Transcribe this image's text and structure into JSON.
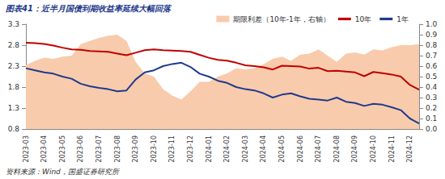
{
  "chart_data": {
    "type": "line",
    "title": "图表41：近半月国债到期收益率延续大幅回落",
    "source": "资料来源：Wind，国盛证券研究所",
    "categories": [
      "2023-03",
      null,
      "2023-04",
      null,
      "2023-05",
      null,
      "2023-06",
      null,
      "2023-07",
      null,
      "2023-08",
      null,
      "2023-09",
      null,
      "2023-10",
      null,
      "2023-11",
      null,
      "2023-12",
      null,
      "2024-01",
      null,
      "2024-02",
      null,
      "2024-03",
      null,
      "2024-04",
      null,
      "2024-05",
      null,
      "2024-06",
      null,
      "2024-07",
      null,
      "2024-08",
      null,
      "2024-09",
      null,
      "2024-10",
      null,
      "2024-11",
      null,
      "2024-12",
      null
    ],
    "series": [
      {
        "name": "期限利差（10年-1年，右轴）",
        "type": "area",
        "axis": "y2",
        "color": "#F8CBAD",
        "values": [
          0.61,
          0.65,
          0.68,
          0.67,
          0.69,
          0.7,
          0.81,
          0.84,
          0.87,
          0.89,
          0.9,
          0.84,
          0.64,
          0.53,
          0.5,
          0.38,
          0.32,
          0.28,
          0.36,
          0.45,
          0.45,
          0.5,
          0.53,
          0.58,
          0.57,
          0.58,
          0.62,
          0.67,
          0.69,
          0.65,
          0.71,
          0.72,
          0.76,
          0.7,
          0.64,
          0.72,
          0.73,
          0.71,
          0.76,
          0.75,
          0.78,
          0.8,
          0.8,
          0.81
        ]
      },
      {
        "name": "10年",
        "type": "line",
        "color": "#C00000",
        "values": [
          2.86,
          2.85,
          2.83,
          2.79,
          2.74,
          2.7,
          2.69,
          2.66,
          2.65,
          2.64,
          2.6,
          2.56,
          2.62,
          2.68,
          2.7,
          2.68,
          2.67,
          2.66,
          2.64,
          2.57,
          2.5,
          2.45,
          2.43,
          2.38,
          2.32,
          2.3,
          2.27,
          2.22,
          2.31,
          2.3,
          2.29,
          2.24,
          2.26,
          2.18,
          2.19,
          2.17,
          2.15,
          2.06,
          2.16,
          2.13,
          2.1,
          2.05,
          1.85,
          1.74
        ]
      },
      {
        "name": "1年",
        "type": "line",
        "color": "#1F3A8C",
        "values": [
          2.25,
          2.2,
          2.15,
          2.12,
          2.05,
          2.0,
          1.88,
          1.82,
          1.78,
          1.75,
          1.7,
          1.72,
          1.98,
          2.15,
          2.2,
          2.3,
          2.35,
          2.38,
          2.28,
          2.12,
          2.05,
          1.95,
          1.9,
          1.8,
          1.75,
          1.72,
          1.65,
          1.55,
          1.62,
          1.65,
          1.58,
          1.52,
          1.5,
          1.48,
          1.55,
          1.45,
          1.42,
          1.35,
          1.4,
          1.38,
          1.32,
          1.25,
          1.05,
          0.93
        ]
      }
    ],
    "ylim": [
      0.8,
      3.3
    ],
    "yticks": [
      0.8,
      1.3,
      1.8,
      2.3,
      2.8,
      3.3
    ],
    "y2lim": [
      0,
      1
    ],
    "y2ticks": [
      {
        "value": 0,
        "label": "0.0"
      },
      0.1,
      0.2,
      0.3,
      0.4,
      0.5,
      0.6,
      0.7,
      0.8,
      0.9,
      {
        "value": 1,
        "label": "1.0"
      }
    ],
    "grid": false,
    "legend": "top"
  }
}
